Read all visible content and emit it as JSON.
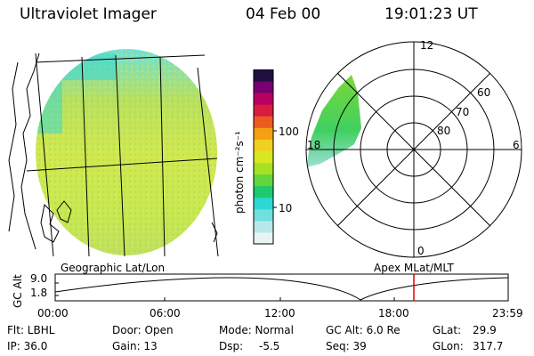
{
  "header": {
    "instrument": "Ultraviolet Imager",
    "date": "04 Feb 00",
    "time": "19:01:23 UT"
  },
  "colorbar": {
    "label": "photon cm⁻²s⁻¹",
    "ticks": [
      "100",
      "10"
    ],
    "colors": [
      "#e8f4f4",
      "#b8e8ec",
      "#6fe0dc",
      "#2cd8d4",
      "#20c870",
      "#62d63a",
      "#a8e024",
      "#d8e820",
      "#f0d020",
      "#f4a010",
      "#ec5a20",
      "#d81e40",
      "#b80060",
      "#780070",
      "#201040"
    ]
  },
  "polar": {
    "lat_labels": [
      "60",
      "70",
      "80"
    ],
    "mlt_labels": [
      "12",
      "18",
      "6",
      "0"
    ]
  },
  "labels": {
    "left_map": "Geographic Lat/Lon",
    "right_map": "Apex  MLat/MLT"
  },
  "orbit": {
    "axis_label": "GC Alt",
    "y_ticks": [
      "9.0",
      "1.8"
    ],
    "x_ticks": [
      "00:00",
      "06:00",
      "12:00",
      "18:00",
      "23:59"
    ],
    "current_marker_color": "#e00000"
  },
  "info": {
    "filter": "Flt: LBHL",
    "door": "Door: Open",
    "mode": "Mode: Normal",
    "gc_alt": "GC Alt: 6.0 Re",
    "glat_label": "GLat:",
    "glat_value": "29.9",
    "ip": "IP: 36.0",
    "gain": "Gain: 13",
    "dsp_label": "Dsp:",
    "dsp_value": "-5.5",
    "seq": "Seq: 39",
    "glon_label": "GLon:",
    "glon_value": "317.7"
  }
}
